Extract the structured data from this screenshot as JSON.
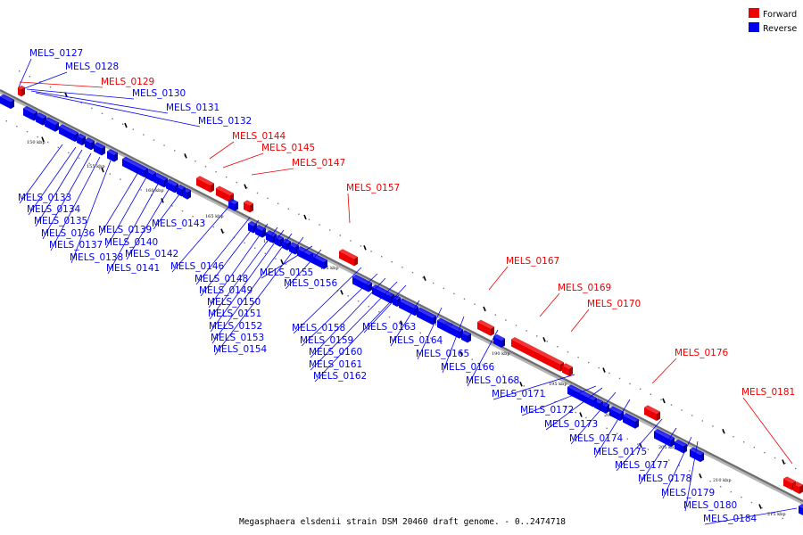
{
  "caption": "Megasphaera elsdenii strain DSM 20460 draft genome. - 0..2474718",
  "legend": {
    "items": [
      {
        "label": "Forward",
        "color": "#ee0000"
      },
      {
        "label": "Reverse",
        "color": "#0000ee"
      }
    ]
  },
  "colors": {
    "forward": "#ee0000",
    "reverse": "#0000ee",
    "backbone": "#6e6e6e"
  },
  "scale_labels": [
    "150 kbp",
    "155 kbp",
    "160 kbp",
    "165 kbp",
    "170 kbp",
    "175 kbp",
    "180 kbp",
    "185 kbp",
    "190 kbp",
    "195 kbp",
    "200 kbp",
    "205 kbp",
    "210 kbp",
    "215 kbp"
  ],
  "forward_genes": [
    "MELS_0129",
    "MELS_0144",
    "MELS_0145",
    "MELS_0147",
    "MELS_0157",
    "MELS_0167",
    "MELS_0169",
    "MELS_0170",
    "MELS_0176",
    "MELS_0181"
  ],
  "reverse_genes": [
    "MELS_0127",
    "MELS_0128",
    "MELS_0130",
    "MELS_0131",
    "MELS_0132",
    "MELS_0133",
    "MELS_0134",
    "MELS_0135",
    "MELS_0136",
    "MELS_0137",
    "MELS_0138",
    "MELS_0139",
    "MELS_0140",
    "MELS_0141",
    "MELS_0142",
    "MELS_0143",
    "MELS_0146",
    "MELS_0148",
    "MELS_0149",
    "MELS_0150",
    "MELS_0151",
    "MELS_0152",
    "MELS_0153",
    "MELS_0154",
    "MELS_0155",
    "MELS_0156",
    "MELS_0158",
    "MELS_0159",
    "MELS_0160",
    "MELS_0161",
    "MELS_0162",
    "MELS_0163",
    "MELS_0164",
    "MELS_0165",
    "MELS_0166",
    "MELS_0168",
    "MELS_0171",
    "MELS_0172",
    "MELS_0173",
    "MELS_0174",
    "MELS_0175",
    "MELS_0177",
    "MELS_0178",
    "MELS_0179",
    "MELS_0180",
    "MELS_0184"
  ]
}
